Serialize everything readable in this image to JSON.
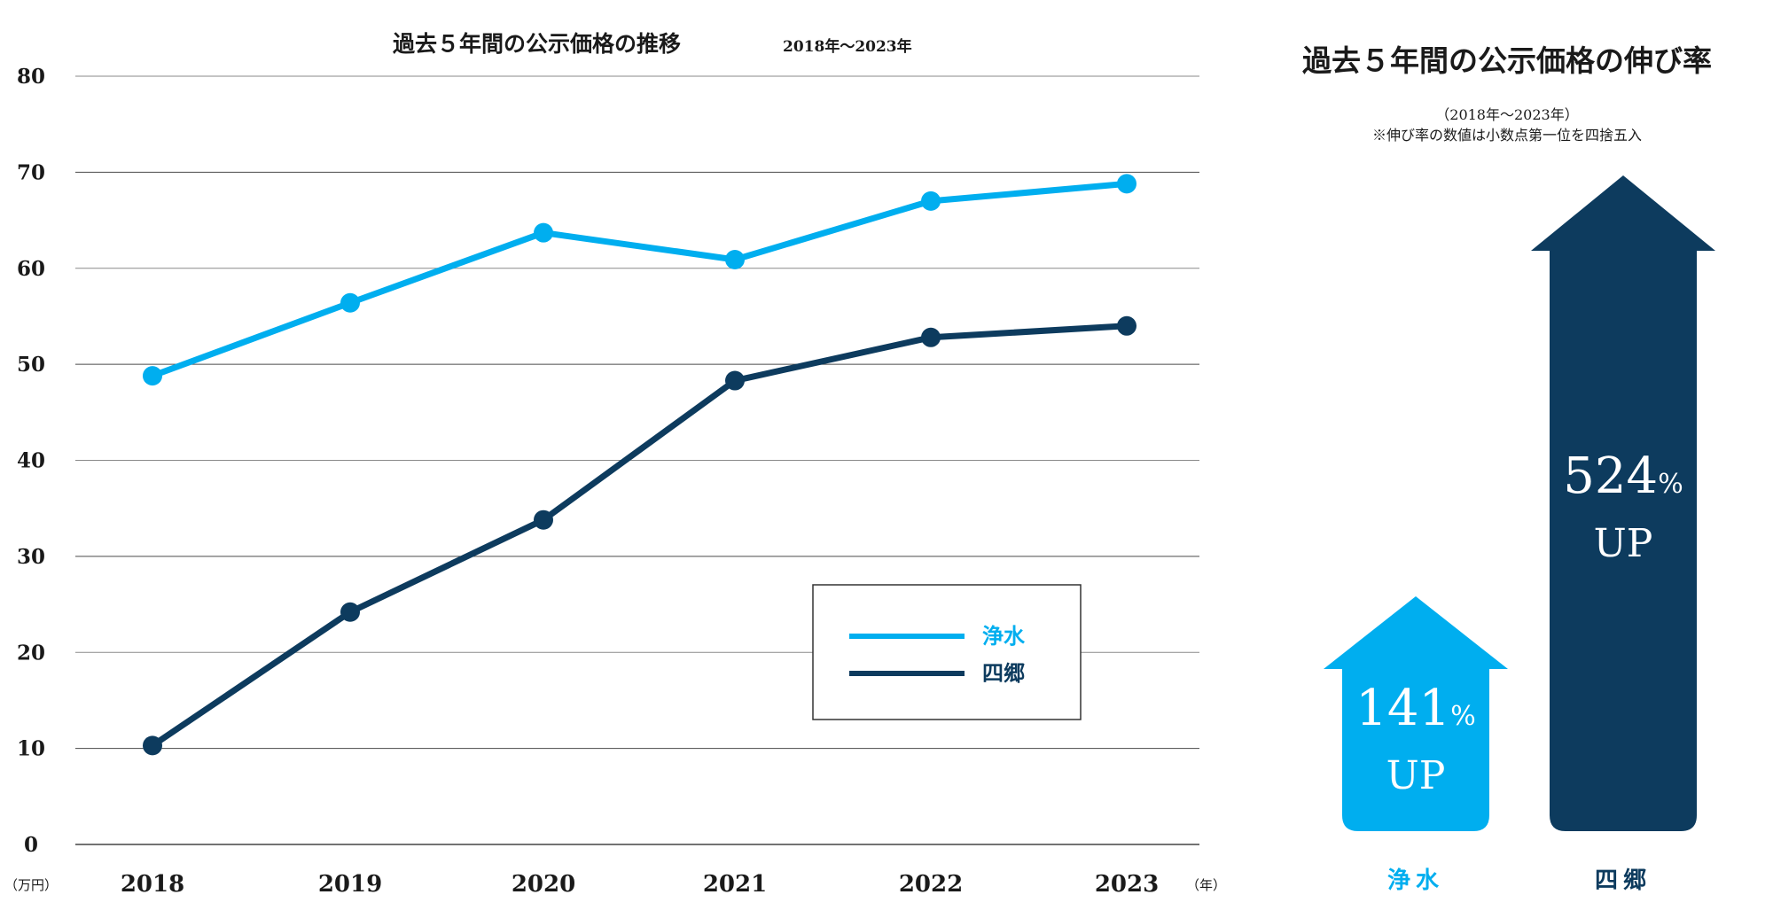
{
  "chart_data": [
    {
      "type": "line",
      "title": "過去５年間の公示価格の推移",
      "subtitle": "2018年～2023年",
      "y_unit_label": "（万円）",
      "x_unit_label": "（年）",
      "ylim": [
        0,
        80
      ],
      "y_ticks": [
        "0",
        "10",
        "20",
        "30",
        "40",
        "50",
        "60",
        "70",
        "80"
      ],
      "categories": [
        "2018",
        "2019",
        "2020",
        "2021",
        "2022",
        "2023"
      ],
      "grid": true,
      "legend_position": "bottom-right",
      "series": [
        {
          "name": "浄水",
          "color": "#00AEEF",
          "values": [
            48.8,
            56.4,
            63.7,
            60.9,
            67.0,
            68.8
          ]
        },
        {
          "name": "四郷",
          "color": "#0D3B5E",
          "values": [
            10.3,
            24.2,
            33.8,
            48.3,
            52.8,
            54.0
          ]
        }
      ]
    },
    {
      "type": "bar",
      "title": "過去５年間の公示価格の伸び率",
      "subtitle": "（2018年～2023年）",
      "note": "※伸び率の数値は小数点第一位を四捨五入",
      "categories": [
        "浄水",
        "四郷"
      ],
      "values": [
        141,
        524
      ],
      "value_suffix": "%",
      "up_label": "UP",
      "colors": [
        "#00AEEF",
        "#0D3B5E"
      ]
    }
  ]
}
